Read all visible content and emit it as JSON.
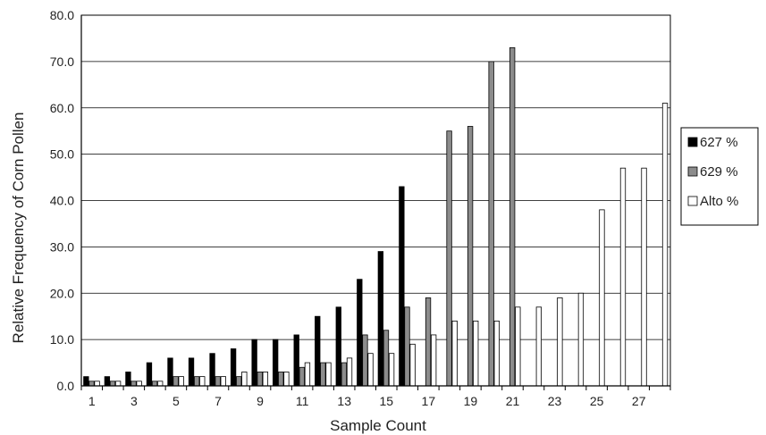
{
  "chart_data": {
    "type": "bar",
    "xlabel": "Sample Count",
    "ylabel": "Relative Frequency of Corn Pollen",
    "ylim": [
      0,
      80
    ],
    "y_ticks": [
      "0.0",
      "10.0",
      "20.0",
      "30.0",
      "40.0",
      "50.0",
      "60.0",
      "70.0",
      "80.0"
    ],
    "categories": [
      "1",
      "2",
      "3",
      "4",
      "5",
      "6",
      "7",
      "8",
      "9",
      "10",
      "11",
      "12",
      "13",
      "14",
      "15",
      "16",
      "17",
      "18",
      "19",
      "20",
      "21",
      "22",
      "23",
      "24",
      "25",
      "26",
      "27",
      "28"
    ],
    "x_tick_labels": [
      "1",
      "",
      "3",
      "",
      "5",
      "",
      "7",
      "",
      "9",
      "",
      "11",
      "",
      "13",
      "",
      "15",
      "",
      "17",
      "",
      "19",
      "",
      "21",
      "",
      "23",
      "",
      "25",
      "",
      "27",
      ""
    ],
    "grid": "horizontal",
    "legend_position": "right",
    "series": [
      {
        "name": "627 %",
        "color": "#000000",
        "values": [
          2,
          2,
          3,
          5,
          6,
          6,
          7,
          8,
          10,
          10,
          11,
          15,
          17,
          23,
          29,
          43,
          null,
          null,
          null,
          null,
          null,
          null,
          null,
          null,
          null,
          null,
          null,
          null
        ]
      },
      {
        "name": "629 %",
        "color": "#8c8c8c",
        "values": [
          1,
          1,
          1,
          1,
          2,
          2,
          2,
          2,
          3,
          3,
          4,
          5,
          5,
          11,
          12,
          17,
          19,
          55,
          56,
          70,
          73,
          null,
          null,
          null,
          null,
          null,
          null,
          null
        ]
      },
      {
        "name": "Alto %",
        "color": "#ffffff",
        "values": [
          1,
          1,
          1,
          1,
          2,
          2,
          2,
          3,
          3,
          3,
          5,
          5,
          6,
          7,
          7,
          9,
          11,
          14,
          14,
          14,
          17,
          17,
          19,
          20,
          38,
          47,
          47,
          61
        ]
      }
    ]
  }
}
